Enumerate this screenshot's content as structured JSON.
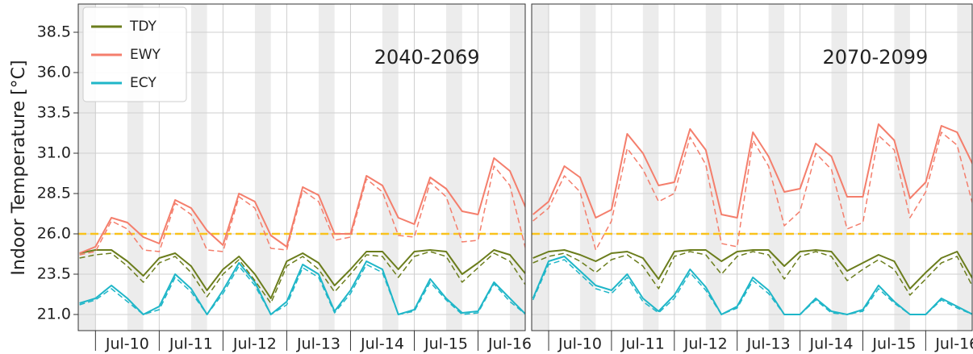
{
  "chart_data": [
    {
      "type": "line",
      "annotation": "2040-2069",
      "legend": "upper left",
      "grid": true,
      "ylabel": "Indoor Temperature [°C]",
      "ylim": [
        20,
        40.25
      ],
      "yticks": [
        {
          "value": 21,
          "label": "21.0"
        },
        23.5,
        {
          "value": 26,
          "label": "26.0"
        },
        28.5,
        {
          "value": 31,
          "label": "31.0"
        },
        33.5,
        {
          "value": 36,
          "label": "36.0"
        },
        38.5
      ],
      "xlim": [
        9.73,
        16.74
      ],
      "xticks": [
        {
          "value": 10,
          "label": "Jul-10"
        },
        {
          "value": 11,
          "label": "Jul-11"
        },
        {
          "value": 12,
          "label": "Jul-12"
        },
        {
          "value": 13,
          "label": "Jul-13"
        },
        {
          "value": 14,
          "label": "Jul-14"
        },
        {
          "value": 15,
          "label": "Jul-15"
        },
        {
          "value": 16,
          "label": "Jul-16"
        }
      ],
      "shaded": [
        [
          9.73,
          10.0
        ],
        [
          10.5,
          10.75
        ],
        [
          11.5,
          11.75
        ],
        [
          12.5,
          12.75
        ],
        [
          13.5,
          13.75
        ],
        [
          14.5,
          14.75
        ],
        [
          15.5,
          15.75
        ],
        [
          16.5,
          16.74
        ]
      ],
      "hline": {
        "value": 26,
        "color": "#f9c21c"
      },
      "x": [
        9.75,
        10,
        10.25,
        10.5,
        10.75,
        11,
        11.25,
        11.5,
        11.75,
        12,
        12.25,
        12.5,
        12.75,
        13,
        13.25,
        13.5,
        13.75,
        14,
        14.25,
        14.5,
        14.75,
        15,
        15.25,
        15.5,
        15.75,
        16,
        16.25,
        16.5,
        16.75
      ],
      "series": [
        {
          "name": "TDY",
          "color": "#6b7d1c",
          "dash": false,
          "values": [
            24.8,
            25.0,
            25.0,
            24.3,
            23.4,
            24.5,
            24.8,
            24.0,
            22.5,
            23.8,
            24.6,
            23.5,
            22.0,
            24.3,
            24.8,
            24.2,
            22.8,
            23.8,
            24.9,
            24.9,
            23.8,
            24.9,
            25.0,
            24.9,
            23.5,
            24.2,
            25.0,
            24.7,
            23.5
          ]
        },
        {
          "name": "EWY",
          "color": "#f47e6c",
          "dash": false,
          "values": [
            24.8,
            25.2,
            27.0,
            26.7,
            25.8,
            25.4,
            28.1,
            27.6,
            26.2,
            25.3,
            28.5,
            28.0,
            25.9,
            25.2,
            28.9,
            28.4,
            26.0,
            26.0,
            29.6,
            29.0,
            27.0,
            26.6,
            29.5,
            28.8,
            27.4,
            27.2,
            30.7,
            29.9,
            27.6
          ]
        },
        {
          "name": "ECY",
          "color": "#1fb6c8",
          "dash": false,
          "values": [
            21.7,
            22.0,
            22.8,
            22.0,
            21.0,
            21.5,
            23.5,
            22.6,
            21.0,
            22.5,
            24.2,
            23.0,
            21.0,
            21.8,
            24.1,
            23.5,
            21.2,
            22.5,
            24.3,
            23.8,
            21.0,
            21.3,
            23.2,
            22.0,
            21.1,
            21.2,
            23.0,
            22.0,
            21.0
          ]
        },
        {
          "color": "#6b7d1c",
          "dash": true,
          "values": [
            24.5,
            24.7,
            24.8,
            24.0,
            23.0,
            24.2,
            24.6,
            23.6,
            22.1,
            23.5,
            24.4,
            23.1,
            21.7,
            24.0,
            24.6,
            23.8,
            22.4,
            23.5,
            24.7,
            24.6,
            23.3,
            24.6,
            24.9,
            24.6,
            23.0,
            23.9,
            24.8,
            24.3,
            22.8
          ]
        },
        {
          "color": "#f47e6c",
          "dash": true,
          "values": [
            24.7,
            24.9,
            26.8,
            26.3,
            25.0,
            24.9,
            27.9,
            27.2,
            25.0,
            24.9,
            28.3,
            27.6,
            25.1,
            25.0,
            28.7,
            28.0,
            25.6,
            25.8,
            29.4,
            28.6,
            25.9,
            25.8,
            29.2,
            28.3,
            25.5,
            25.6,
            30.2,
            29.0,
            25.0
          ]
        },
        {
          "color": "#1fb6c8",
          "dash": true,
          "values": [
            21.6,
            21.9,
            22.6,
            21.8,
            21.0,
            21.3,
            23.3,
            22.4,
            21.0,
            22.3,
            24.0,
            22.8,
            21.0,
            21.6,
            23.9,
            23.3,
            21.1,
            22.3,
            24.1,
            23.6,
            21.0,
            21.2,
            23.0,
            21.9,
            21.0,
            21.1,
            22.9,
            21.8,
            21.0
          ]
        }
      ]
    },
    {
      "type": "line",
      "annotation": "2070-2099",
      "grid": true,
      "ylim": [
        20,
        40.25
      ],
      "yticks": [
        21,
        23.5,
        26,
        28.5,
        31,
        33.5,
        36,
        38.5
      ],
      "xlim": [
        9.73,
        16.74
      ],
      "xticks": [
        {
          "value": 10,
          "label": "Jul-10"
        },
        {
          "value": 11,
          "label": "Jul-11"
        },
        {
          "value": 12,
          "label": "Jul-12"
        },
        {
          "value": 13,
          "label": "Jul-13"
        },
        {
          "value": 14,
          "label": "Jul-14"
        },
        {
          "value": 15,
          "label": "Jul-15"
        },
        {
          "value": 16,
          "label": "Jul-16"
        }
      ],
      "shaded": [
        [
          9.73,
          10.0
        ],
        [
          10.5,
          10.75
        ],
        [
          11.5,
          11.75
        ],
        [
          12.5,
          12.75
        ],
        [
          13.5,
          13.75
        ],
        [
          14.5,
          14.75
        ],
        [
          15.5,
          15.75
        ],
        [
          16.5,
          16.74
        ]
      ],
      "hline": {
        "value": 26,
        "color": "#f9c21c"
      },
      "x": [
        9.75,
        10,
        10.25,
        10.5,
        10.75,
        11,
        11.25,
        11.5,
        11.75,
        12,
        12.25,
        12.5,
        12.75,
        13,
        13.25,
        13.5,
        13.75,
        14,
        14.25,
        14.5,
        14.75,
        15,
        15.25,
        15.5,
        15.75,
        16,
        16.25,
        16.5,
        16.75
      ],
      "series": [
        {
          "color": "#6b7d1c",
          "dash": false,
          "values": [
            24.5,
            24.9,
            25.0,
            24.7,
            24.3,
            24.8,
            24.9,
            24.5,
            23.2,
            24.9,
            25.0,
            25.0,
            24.3,
            24.9,
            25.0,
            25.0,
            24.0,
            24.9,
            25.0,
            24.9,
            23.7,
            24.2,
            24.7,
            24.3,
            22.6,
            23.6,
            24.5,
            24.9,
            23.2
          ]
        },
        {
          "color": "#f47e6c",
          "dash": false,
          "values": [
            27.2,
            28.0,
            30.2,
            29.5,
            27.0,
            27.5,
            32.2,
            31.0,
            29.0,
            29.2,
            32.5,
            31.2,
            27.2,
            27.0,
            32.3,
            30.8,
            28.6,
            28.8,
            31.6,
            30.8,
            28.3,
            28.3,
            32.8,
            31.8,
            28.2,
            29.2,
            32.7,
            32.3,
            30.3
          ]
        },
        {
          "color": "#1fb6c8",
          "dash": false,
          "values": [
            22.0,
            24.3,
            24.6,
            23.7,
            22.8,
            22.5,
            23.5,
            22.0,
            21.2,
            22.2,
            23.8,
            22.7,
            21.0,
            21.5,
            23.3,
            22.5,
            21.0,
            21.0,
            22.0,
            21.2,
            21.0,
            21.3,
            22.8,
            21.8,
            21.0,
            21.0,
            22.0,
            21.5,
            21.0
          ]
        },
        {
          "color": "#6b7d1c",
          "dash": true,
          "values": [
            24.2,
            24.6,
            24.8,
            24.3,
            23.6,
            24.4,
            24.7,
            24.0,
            22.6,
            24.6,
            24.9,
            24.7,
            23.5,
            24.6,
            24.9,
            24.7,
            23.2,
            24.6,
            24.9,
            24.6,
            23.1,
            23.8,
            24.4,
            23.8,
            22.2,
            23.2,
            24.2,
            24.6,
            22.7
          ]
        },
        {
          "color": "#f47e6c",
          "dash": true,
          "values": [
            26.8,
            27.6,
            29.6,
            28.6,
            25.0,
            26.8,
            31.3,
            30.0,
            28.0,
            28.5,
            32.0,
            30.3,
            25.4,
            25.2,
            31.8,
            30.2,
            26.5,
            27.4,
            31.0,
            30.0,
            26.3,
            26.7,
            32.1,
            31.2,
            27.0,
            28.6,
            32.3,
            31.5,
            27.8
          ]
        },
        {
          "color": "#1fb6c8",
          "dash": true,
          "values": [
            21.9,
            24.1,
            24.4,
            23.5,
            22.6,
            22.3,
            23.3,
            21.8,
            21.1,
            22.0,
            23.6,
            22.5,
            21.0,
            21.4,
            23.1,
            22.3,
            21.0,
            21.0,
            21.9,
            21.1,
            21.0,
            21.2,
            22.6,
            21.7,
            21.0,
            21.0,
            21.9,
            21.4,
            21.0
          ]
        }
      ]
    }
  ]
}
